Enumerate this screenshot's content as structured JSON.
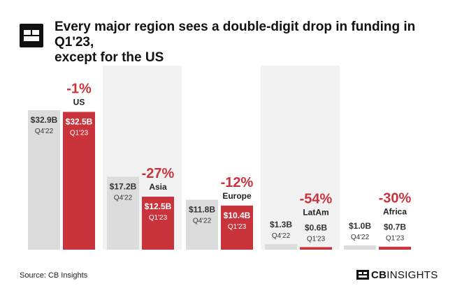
{
  "header": {
    "title_line1": "Every major region sees a double-digit drop in funding in Q1'23,",
    "title_line2": "except for the US"
  },
  "footer": {
    "source": "Source: CB Insights",
    "brand_bold": "CB",
    "brand_rest": "INSIGHTS"
  },
  "colors": {
    "q4_bar": "#dcdcdc",
    "q1_bar": "#c9343c",
    "change": "#c9343c",
    "band": "#f2f2f2",
    "text_dark": "#333333"
  },
  "chart_data": {
    "type": "bar",
    "title": "Every major region sees a double-digit drop in funding in Q1'23, except for the US",
    "unit": "$B",
    "ylim": [
      0,
      32.9
    ],
    "grid": false,
    "series": [
      {
        "name": "Q4'22",
        "values": [
          32.9,
          17.2,
          11.8,
          1.3,
          1.0
        ],
        "labels": [
          "$32.9B",
          "$17.2B",
          "$11.8B",
          "$1.3B",
          "$1.0B"
        ]
      },
      {
        "name": "Q1'23",
        "values": [
          32.5,
          12.5,
          10.4,
          0.6,
          0.7
        ],
        "labels": [
          "$32.5B",
          "$12.5B",
          "$10.4B",
          "$0.6B",
          "$0.7B"
        ]
      }
    ],
    "categories": [
      "US",
      "Asia",
      "Europe",
      "LatAm",
      "Africa"
    ],
    "changes": [
      "-1%",
      "-27%",
      "-12%",
      "-54%",
      "-30%"
    ],
    "shaded_bands": [
      "Asia",
      "LatAm"
    ]
  }
}
